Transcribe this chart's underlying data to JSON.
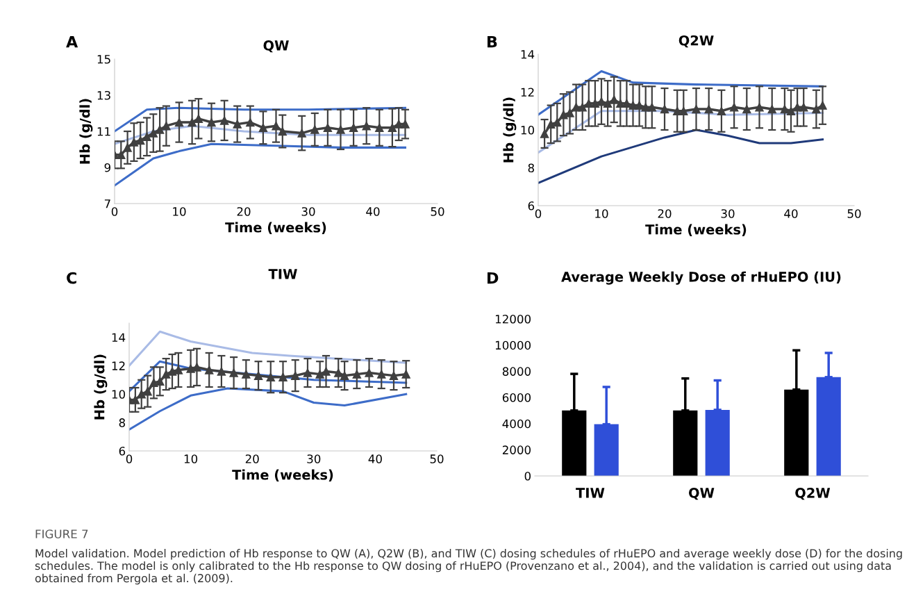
{
  "chart_data": [
    {
      "type": "line",
      "title": "QW",
      "xlabel": "Time (weeks)",
      "ylabel": "Hb (g/dl)",
      "xlim": [
        0,
        50
      ],
      "xticks": [
        0,
        10,
        20,
        30,
        40,
        50
      ],
      "ylim": [
        7,
        15
      ],
      "yticks": [
        7,
        9,
        11,
        13,
        15
      ],
      "annotations": [
        "A"
      ],
      "series": [
        {
          "color": "#3d6cc8",
          "x": [
            0,
            5,
            10,
            20,
            30,
            45
          ],
          "values": [
            11.0,
            12.2,
            12.3,
            12.2,
            12.2,
            12.3
          ]
        },
        {
          "color": "#a9bbe6",
          "x": [
            0,
            6,
            12,
            20,
            30,
            45
          ],
          "values": [
            10.3,
            11.0,
            11.3,
            11.0,
            10.8,
            10.8
          ]
        },
        {
          "color": "#3d6cc8",
          "x": [
            0,
            6,
            10,
            15,
            25,
            35,
            45
          ],
          "values": [
            8.0,
            9.5,
            9.9,
            10.3,
            10.2,
            10.1,
            10.1
          ]
        },
        {
          "color": "#404040",
          "marker": "triangle",
          "x": [
            0,
            1,
            2,
            3,
            4,
            5,
            6,
            7,
            8,
            10,
            12,
            13,
            15,
            17,
            19,
            21,
            23,
            25,
            26,
            29,
            31,
            33,
            35,
            37,
            39,
            41,
            43,
            44,
            45
          ],
          "values": [
            9.7,
            9.7,
            10.1,
            10.4,
            10.5,
            10.7,
            10.9,
            11.1,
            11.3,
            11.5,
            11.5,
            11.7,
            11.5,
            11.6,
            11.4,
            11.5,
            11.2,
            11.3,
            11.0,
            10.9,
            11.1,
            11.2,
            11.1,
            11.2,
            11.3,
            11.2,
            11.2,
            11.4,
            11.4
          ],
          "errors": [
            0.75,
            0.75,
            0.9,
            1.05,
            1.0,
            1.05,
            1.05,
            1.2,
            1.1,
            1.1,
            1.2,
            1.1,
            1.05,
            1.1,
            1.0,
            0.9,
            0.9,
            0.9,
            0.9,
            0.95,
            0.9,
            1.0,
            1.1,
            1.0,
            1.0,
            1.0,
            1.05,
            0.9,
            0.8
          ]
        }
      ]
    },
    {
      "type": "line",
      "title": "Q2W",
      "xlabel": "Time (weeks)",
      "ylabel": "Hb (g/dl)",
      "xlim": [
        0,
        50
      ],
      "xticks": [
        0,
        10,
        20,
        30,
        40,
        50
      ],
      "ylim": [
        6,
        14
      ],
      "yticks": [
        6,
        8,
        10,
        12,
        14
      ],
      "annotations": [
        "B"
      ],
      "series": [
        {
          "color": "#3d6cc8",
          "x": [
            0,
            10,
            15,
            25,
            45
          ],
          "values": [
            10.8,
            13.1,
            12.5,
            12.4,
            12.3
          ]
        },
        {
          "color": "#a9bbe6",
          "x": [
            0,
            10,
            20,
            30,
            45
          ],
          "values": [
            8.8,
            11.0,
            11.0,
            10.8,
            10.9
          ]
        },
        {
          "color": "#1f3a7a",
          "x": [
            0,
            10,
            20,
            25,
            30,
            35,
            40,
            45
          ],
          "values": [
            7.2,
            8.6,
            9.6,
            10.0,
            9.7,
            9.3,
            9.3,
            9.5
          ]
        },
        {
          "color": "#404040",
          "marker": "triangle",
          "x": [
            1,
            2,
            3,
            4,
            5,
            6,
            7,
            8,
            9,
            10,
            11,
            12,
            13,
            14,
            15,
            16,
            17,
            18,
            20,
            22,
            23,
            25,
            27,
            29,
            31,
            33,
            35,
            37,
            39,
            40,
            41,
            42,
            44,
            45
          ],
          "values": [
            9.8,
            10.3,
            10.4,
            10.8,
            10.9,
            11.2,
            11.2,
            11.4,
            11.4,
            11.5,
            11.4,
            11.6,
            11.4,
            11.4,
            11.3,
            11.3,
            11.2,
            11.2,
            11.1,
            11.0,
            11.0,
            11.1,
            11.1,
            11.0,
            11.2,
            11.1,
            11.2,
            11.1,
            11.1,
            11.0,
            11.2,
            11.2,
            11.1,
            11.3
          ],
          "errors": [
            0.75,
            1.0,
            1.0,
            1.1,
            1.1,
            1.2,
            1.2,
            1.2,
            1.2,
            1.2,
            1.2,
            1.2,
            1.2,
            1.2,
            1.1,
            1.1,
            1.1,
            1.1,
            1.1,
            1.1,
            1.1,
            1.1,
            1.1,
            1.1,
            1.1,
            1.1,
            1.1,
            1.1,
            1.1,
            1.1,
            1.0,
            1.0,
            1.0,
            1.0
          ]
        }
      ]
    },
    {
      "type": "line",
      "title": "TIW",
      "xlabel": "Time (weeks)",
      "ylabel": "Hb (g/dl)",
      "xlim": [
        0,
        50
      ],
      "xticks": [
        0,
        10,
        20,
        30,
        40,
        50
      ],
      "ylim": [
        6,
        15
      ],
      "yticks": [
        6,
        8,
        10,
        12,
        14
      ],
      "annotations": [
        "C"
      ],
      "series": [
        {
          "color": "#a9bbe6",
          "x": [
            0,
            5,
            10,
            20,
            26,
            45
          ],
          "values": [
            12.0,
            14.4,
            13.7,
            12.9,
            12.7,
            12.2
          ]
        },
        {
          "color": "#3d6cc8",
          "x": [
            0,
            5,
            10,
            20,
            30,
            45
          ],
          "values": [
            10.2,
            12.3,
            11.8,
            11.4,
            11.0,
            10.8
          ]
        },
        {
          "color": "#3d6cc8",
          "x": [
            0,
            5,
            10,
            16,
            25,
            30,
            35,
            45
          ],
          "values": [
            7.5,
            8.8,
            9.9,
            10.4,
            10.2,
            9.4,
            9.2,
            10.0
          ]
        },
        {
          "color": "#404040",
          "marker": "triangle",
          "x": [
            0,
            1,
            2,
            3,
            4,
            5,
            6,
            7,
            8,
            10,
            11,
            13,
            15,
            17,
            19,
            21,
            23,
            25,
            27,
            29,
            31,
            32,
            34,
            35,
            37,
            39,
            41,
            43,
            45
          ],
          "values": [
            9.6,
            9.6,
            10.0,
            10.2,
            10.8,
            10.9,
            11.4,
            11.6,
            11.7,
            11.8,
            11.9,
            11.7,
            11.6,
            11.5,
            11.4,
            11.3,
            11.2,
            11.2,
            11.3,
            11.5,
            11.4,
            11.6,
            11.5,
            11.3,
            11.4,
            11.5,
            11.4,
            11.3,
            11.4
          ],
          "errors": [
            0.85,
            0.85,
            1.0,
            1.1,
            1.1,
            1.0,
            1.1,
            1.2,
            1.2,
            1.3,
            1.3,
            1.2,
            1.1,
            1.1,
            1.0,
            1.0,
            1.1,
            1.1,
            1.1,
            1.0,
            0.9,
            1.1,
            1.0,
            1.0,
            1.0,
            1.0,
            1.0,
            1.0,
            0.95
          ]
        }
      ]
    },
    {
      "type": "bar",
      "title": "Average Weekly Dose of rHuEPO (IU)",
      "categories": [
        "TIW",
        "QW",
        "Q2W"
      ],
      "ylim": [
        0,
        12000
      ],
      "yticks": [
        0,
        2000,
        4000,
        6000,
        8000,
        10000,
        12000
      ],
      "annotations": [
        "D",
        "FIGURE 7",
        "Model validation. Model prediction of Hb response to QW (A), Q2W (B), and TIW (C) dosing schedules of rHuEPO and average weekly dose (D) for the dosing schedules. The model is only calibrated to the Hb response to QW dosing of rHuEPO (Provenzano et al., 2004), and the validation is carried out using data obtained from Pergola et al. (2009)."
      ],
      "series": [
        {
          "color": "#000000",
          "values": [
            5000,
            5000,
            6600
          ],
          "errors": [
            [
              5000,
              7800
            ],
            [
              5000,
              7450
            ],
            [
              6600,
              9600
            ]
          ]
        },
        {
          "color": "#2f4fd8",
          "values": [
            3950,
            5050,
            7550
          ],
          "errors": [
            [
              3950,
              6800
            ],
            [
              5050,
              7300
            ],
            [
              7550,
              9400
            ]
          ]
        }
      ]
    }
  ]
}
